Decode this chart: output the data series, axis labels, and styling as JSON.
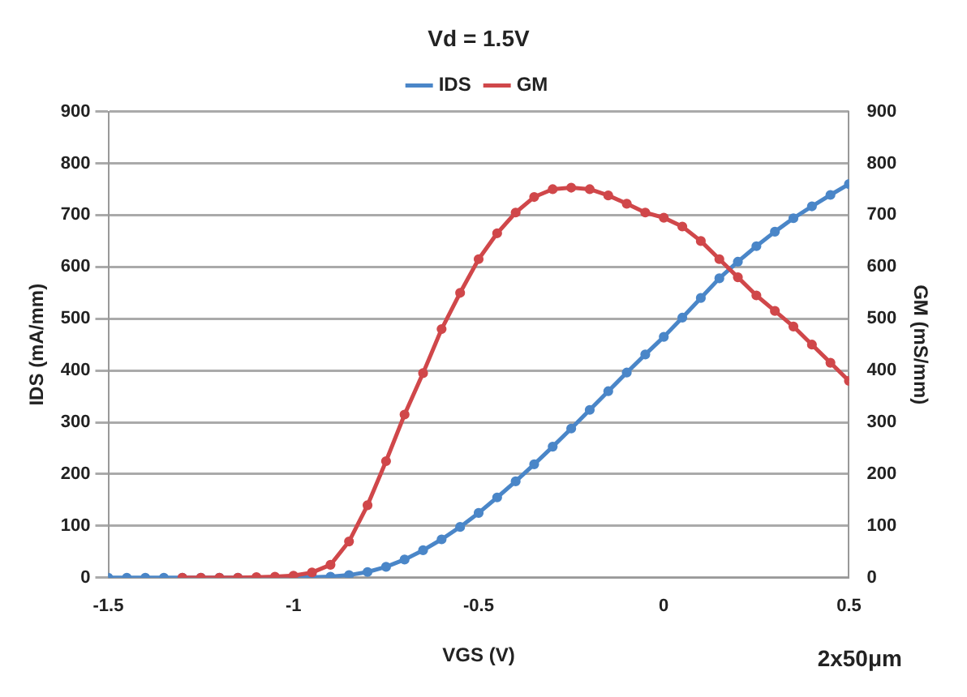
{
  "chart_data": {
    "type": "line",
    "title": "Vd = 1.5V",
    "xlabel": "VGS (V)",
    "ylabel": "IDS (mA/mm)",
    "y2label": "GM (mS/mm)",
    "annotations": [
      "2x50μm"
    ],
    "x": [
      -1.5,
      -1.45,
      -1.4,
      -1.35,
      -1.3,
      -1.25,
      -1.2,
      -1.15,
      -1.1,
      -1.05,
      -1.0,
      -0.95,
      -0.9,
      -0.85,
      -0.8,
      -0.75,
      -0.7,
      -0.65,
      -0.6,
      -0.55,
      -0.5,
      -0.45,
      -0.4,
      -0.35,
      -0.3,
      -0.25,
      -0.2,
      -0.15,
      -0.1,
      -0.05,
      0,
      0.05,
      0.1,
      0.15,
      0.2,
      0.25,
      0.3,
      0.35,
      0.4,
      0.45,
      0.5
    ],
    "series": [
      {
        "name": "IDS",
        "color": "#4a86c8",
        "values": [
          0,
          0,
          0,
          0,
          0,
          0,
          0,
          0,
          0,
          0,
          0,
          1,
          2,
          5,
          11,
          21,
          35,
          53,
          74,
          98,
          125,
          155,
          186,
          219,
          253,
          288,
          324,
          360,
          396,
          431,
          465,
          502,
          540,
          578,
          610,
          640,
          668,
          694,
          717,
          739,
          760
        ]
      },
      {
        "name": "GM",
        "color": "#d0474a",
        "axis": "y2",
        "values": [
          null,
          null,
          null,
          null,
          0,
          0,
          0,
          0,
          1,
          2,
          4,
          10,
          25,
          70,
          140,
          225,
          315,
          395,
          480,
          550,
          615,
          665,
          705,
          735,
          750,
          753,
          750,
          738,
          722,
          705,
          695,
          678,
          650,
          615,
          580,
          545,
          515,
          485,
          450,
          415,
          380
        ]
      }
    ],
    "xlim": [
      -1.5,
      0.5
    ],
    "xticks": [
      -1.5,
      -1,
      -0.5,
      0,
      0.5
    ],
    "ylim": [
      0,
      900
    ],
    "yticks": [
      0,
      100,
      200,
      300,
      400,
      500,
      600,
      700,
      800,
      900
    ],
    "y2lim": [
      0,
      900
    ],
    "y2ticks": [
      0,
      100,
      200,
      300,
      400,
      500,
      600,
      700,
      800,
      900
    ],
    "grid": "y",
    "legend": "top",
    "marker": "circle",
    "line_style": "solid"
  }
}
